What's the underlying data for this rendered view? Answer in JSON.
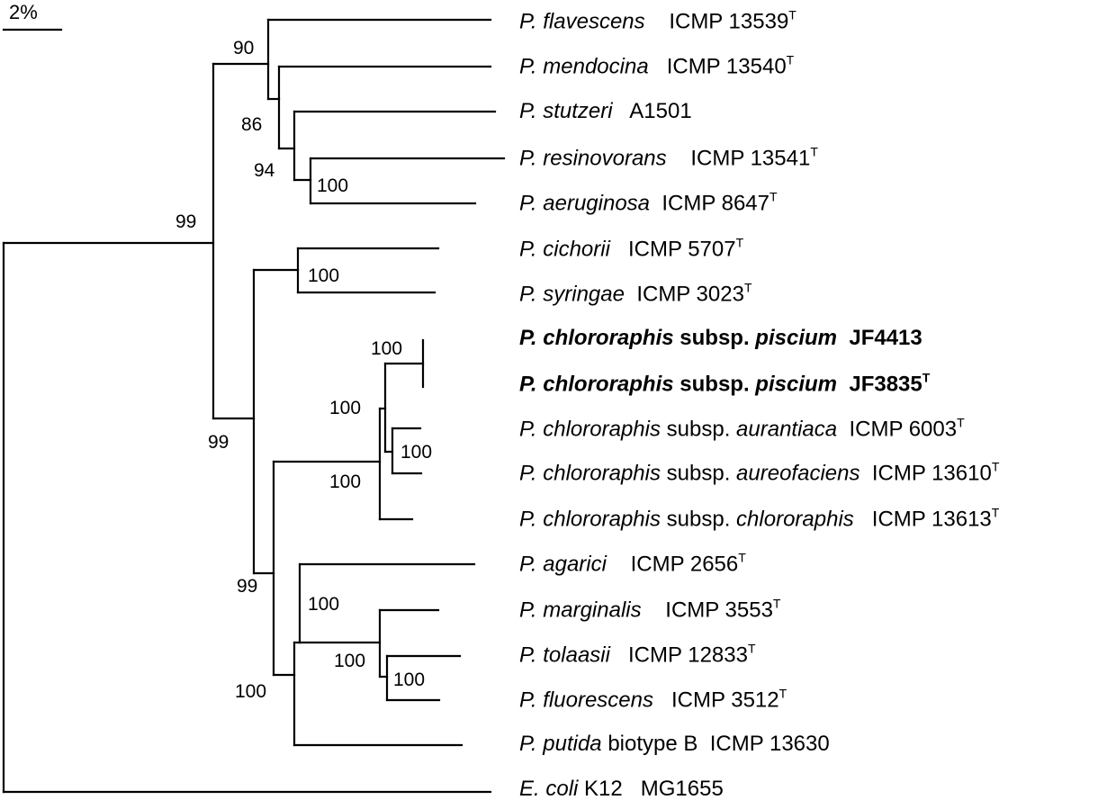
{
  "scale_bar": {
    "label": "2%"
  },
  "taxa": [
    {
      "genus": "P. flavescens",
      "strain": "ICMP 13539",
      "type_strain": true,
      "emphasis": false
    },
    {
      "genus": "P. mendocina",
      "strain": "ICMP 13540",
      "type_strain": true,
      "emphasis": false
    },
    {
      "genus": "P. stutzeri",
      "strain": "A1501",
      "type_strain": false,
      "emphasis": false
    },
    {
      "genus": "P. resinovorans",
      "strain": "ICMP 13541",
      "type_strain": true,
      "emphasis": false
    },
    {
      "genus": "P. aeruginosa",
      "strain": "ICMP 8647",
      "type_strain": true,
      "emphasis": false
    },
    {
      "genus": "P. cichorii",
      "strain": "ICMP 5707",
      "type_strain": true,
      "emphasis": false
    },
    {
      "genus": "P. syringae",
      "strain": "ICMP 3023",
      "type_strain": true,
      "emphasis": false
    },
    {
      "genus": "P. chlororaphis",
      "subsp": "piscium",
      "strain": "JF4413",
      "type_strain": false,
      "emphasis": true
    },
    {
      "genus": "P. chlororaphis",
      "subsp": "piscium",
      "strain": "JF3835",
      "type_strain": true,
      "emphasis": true
    },
    {
      "genus": "P. chlororaphis",
      "subsp": "aurantiaca",
      "strain": "ICMP 6003",
      "type_strain": true,
      "emphasis": false
    },
    {
      "genus": "P. chlororaphis",
      "subsp": "aureofaciens",
      "strain": "ICMP 13610",
      "type_strain": true,
      "emphasis": false
    },
    {
      "genus": "P. chlororaphis",
      "subsp": "chlororaphis",
      "strain": "ICMP 13613",
      "type_strain": true,
      "emphasis": false
    },
    {
      "genus": "P. agarici",
      "strain": "ICMP 2656",
      "type_strain": true,
      "emphasis": false
    },
    {
      "genus": "P. marginalis",
      "strain": "ICMP 3553",
      "type_strain": true,
      "emphasis": false
    },
    {
      "genus": "P. tolaasii",
      "strain": "ICMP 12833",
      "type_strain": true,
      "emphasis": false
    },
    {
      "genus": "P. fluorescens",
      "strain": "ICMP 3512",
      "type_strain": true,
      "emphasis": false
    },
    {
      "genus": "P. putida",
      "descriptor": "biotype B",
      "strain": "ICMP 13630",
      "type_strain": false,
      "emphasis": false
    },
    {
      "genus": "E. coli",
      "descriptor": "K12",
      "strain": "MG1655",
      "type_strain": false,
      "emphasis": false
    }
  ],
  "subsp_word": "subsp.",
  "type_mark": "T",
  "bootstrap_values": [
    "90",
    "86",
    "94",
    "100",
    "99",
    "100",
    "100",
    "100",
    "100",
    "100",
    "99",
    "99",
    "100",
    "100",
    "100",
    "100"
  ]
}
